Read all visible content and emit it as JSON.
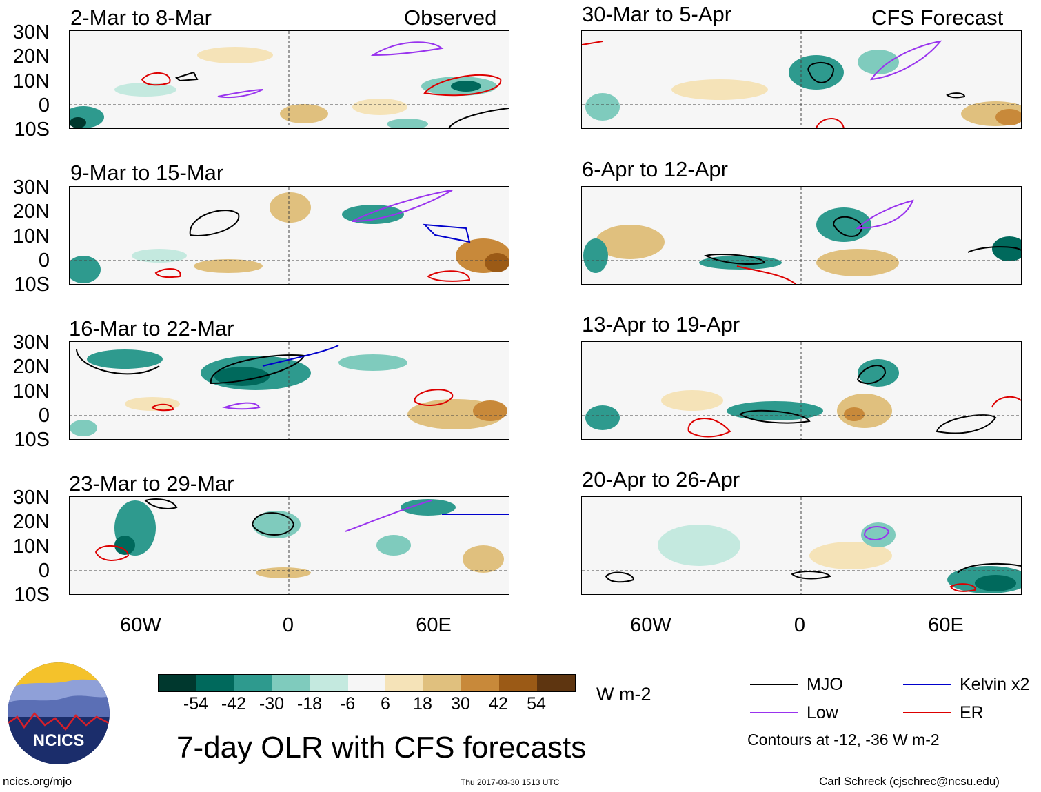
{
  "title": "7-day OLR with CFS forecasts",
  "section_labels": {
    "observed": "Observed",
    "forecast": "CFS Forecast"
  },
  "panels": [
    {
      "label": "2-Mar to 8-Mar"
    },
    {
      "label": "9-Mar to 15-Mar"
    },
    {
      "label": "16-Mar to 22-Mar"
    },
    {
      "label": "23-Mar to 29-Mar"
    },
    {
      "label": "30-Mar to 5-Apr"
    },
    {
      "label": "6-Apr to 12-Apr"
    },
    {
      "label": "13-Apr to 19-Apr"
    },
    {
      "label": "20-Apr to 26-Apr"
    }
  ],
  "lat_labels": [
    "30N",
    "20N",
    "10N",
    "0",
    "10S"
  ],
  "lon_labels": [
    "60W",
    "0",
    "60E"
  ],
  "colorbar": {
    "colors": [
      "#00382e",
      "#00695c",
      "#2e9a8e",
      "#7fcbbd",
      "#c4e9df",
      "#f6f6f6",
      "#f5e3b8",
      "#e0c07e",
      "#c8893a",
      "#9b5a16",
      "#5e3510"
    ],
    "labels": [
      "-54",
      "-42",
      "-30",
      "-18",
      "-6",
      "6",
      "18",
      "30",
      "42",
      "54"
    ],
    "units": "W m-2"
  },
  "legend": {
    "items": [
      {
        "label": "MJO",
        "color": "#000000"
      },
      {
        "label": "Kelvin x2",
        "color": "#0000cc"
      },
      {
        "label": "Low",
        "color": "#9933ee"
      },
      {
        "label": "ER",
        "color": "#dd0000"
      }
    ],
    "note": "Contours at -12, -36 W m-2"
  },
  "logo_text": "NCICS",
  "footer": {
    "url": "ncics.org/mjo",
    "timestamp": "Thu 2017-03-30 1513 UTC",
    "author": "Carl Schreck (cjschrec@ncsu.edu)"
  }
}
